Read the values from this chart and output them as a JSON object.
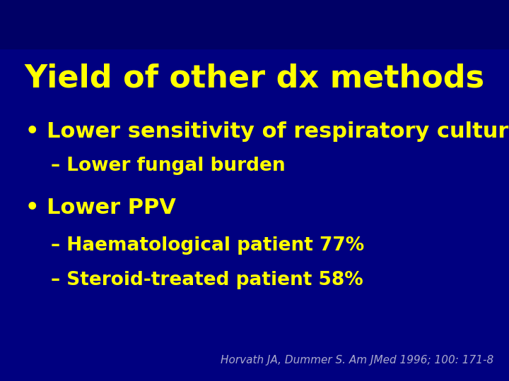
{
  "background_color": "#000080",
  "header_bar_color": "#000066",
  "title": "Yield of other dx methods",
  "title_color": "#FFFF00",
  "title_fontsize": 32,
  "bullet1": "Lower sensitivity of respiratory cultures",
  "sub1": "– Lower fungal burden",
  "bullet2": "Lower PPV",
  "sub2a": "– Haematological patient 77%",
  "sub2b": "– Steroid-treated patient 58%",
  "bullet_color": "#FFFF00",
  "sub_color": "#FFFF00",
  "bullet_fontsize": 22,
  "sub_fontsize": 19,
  "footer": "Horvath JA, Dummer S. Am JMed 1996; 100: 171-8",
  "footer_color": "#AAAACC",
  "footer_fontsize": 11,
  "figsize": [
    7.2,
    5.4
  ],
  "dpi": 100
}
